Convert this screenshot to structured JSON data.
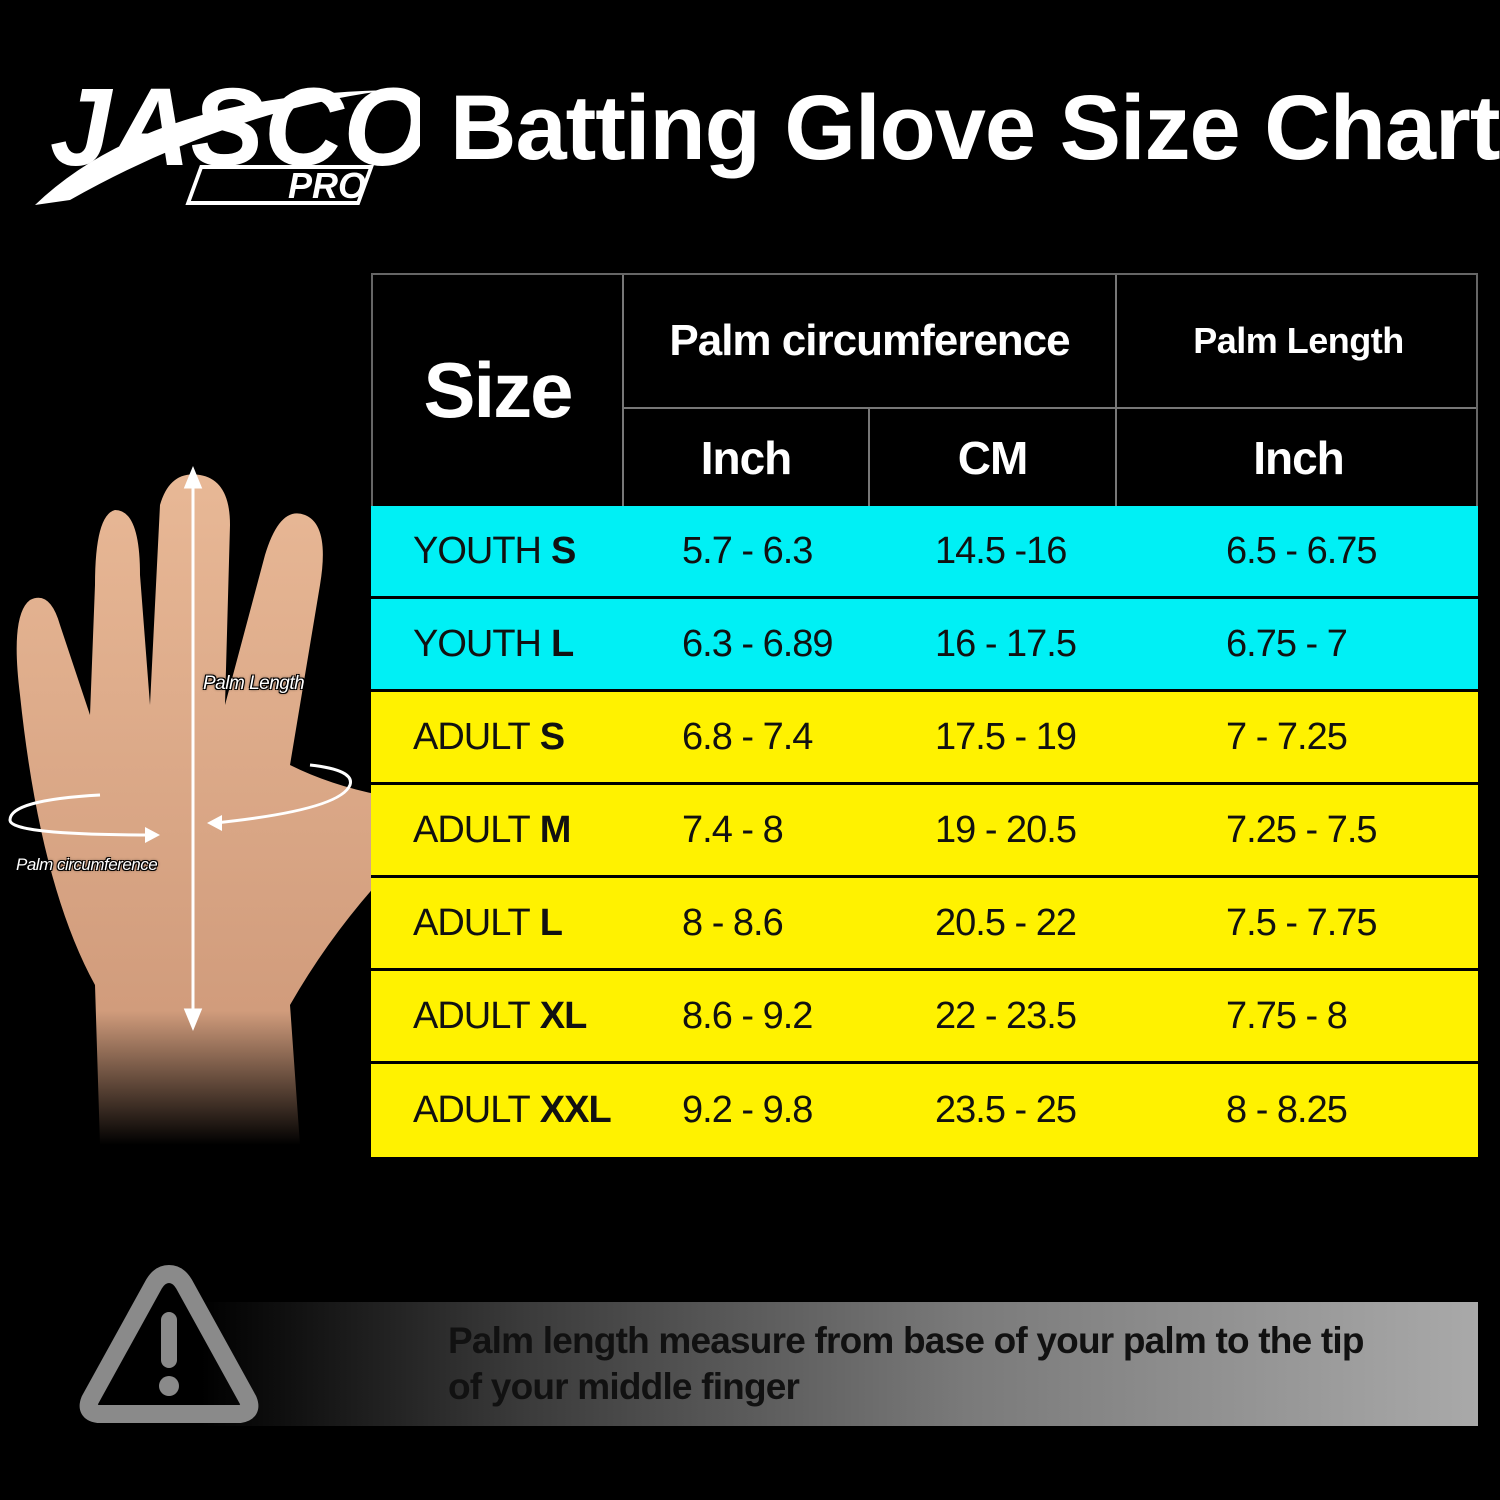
{
  "brand": {
    "name_top": "JASCO",
    "name_bottom": "PRO"
  },
  "title": "Batting Glove Size Chart",
  "hand": {
    "length_label": "Palm Length",
    "circumference_label": "Palm circumference"
  },
  "table": {
    "header": {
      "size": "Size",
      "palm_circumference": "Palm circumference",
      "palm_length": "Palm Length",
      "inch": "Inch",
      "cm": "CM",
      "length_inch": "Inch"
    },
    "rows": [
      {
        "group": "YOUTH",
        "size": "S",
        "inch": "5.7 - 6.3",
        "cm": "14.5 -16",
        "length": "6.5 - 6.75"
      },
      {
        "group": "YOUTH",
        "size": "L",
        "inch": "6.3 - 6.89",
        "cm": "16 - 17.5",
        "length": "6.75 - 7"
      },
      {
        "group": "ADULT",
        "size": "S",
        "inch": "6.8 - 7.4",
        "cm": "17.5 - 19",
        "length": "7 - 7.25"
      },
      {
        "group": "ADULT",
        "size": "M",
        "inch": "7.4 - 8",
        "cm": "19 - 20.5",
        "length": "7.25 - 7.5"
      },
      {
        "group": "ADULT",
        "size": "L",
        "inch": "8 - 8.6",
        "cm": "20.5 - 22",
        "length": "7.5 - 7.75"
      },
      {
        "group": "ADULT",
        "size": "XL",
        "inch": "8.6 - 9.2",
        "cm": "22 - 23.5",
        "length": "7.75 - 8"
      },
      {
        "group": "ADULT",
        "size": "XXL",
        "inch": "9.2 - 9.8",
        "cm": "23.5 - 25",
        "length": "8 - 8.25"
      }
    ]
  },
  "note": {
    "icon": "warning-icon",
    "line1": "Palm length measure from base of your palm to the tip",
    "line2": "of your middle finger"
  },
  "colors": {
    "youth": "#00f0f5",
    "adult": "#fff200",
    "background": "#000000"
  }
}
